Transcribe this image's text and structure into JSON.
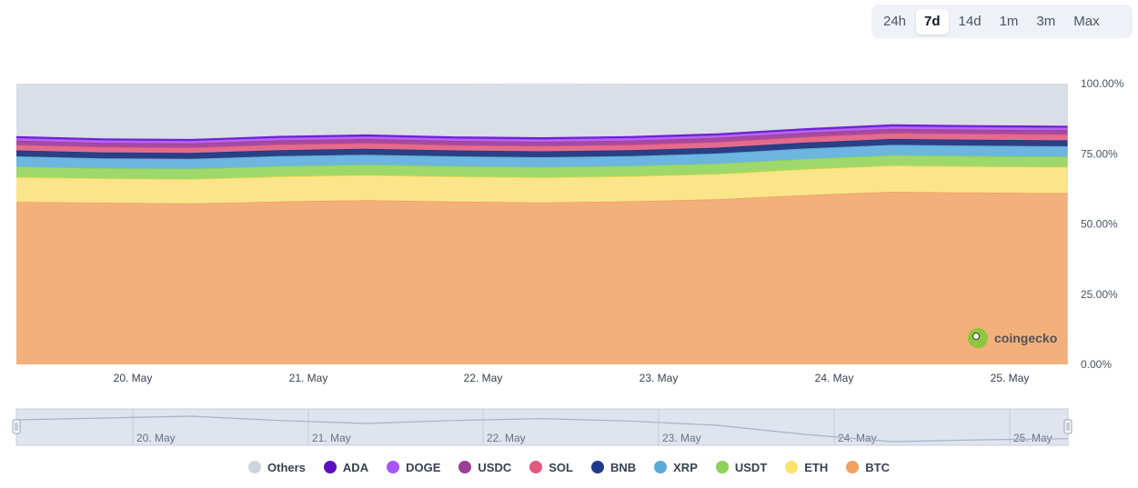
{
  "range_selector": {
    "options": [
      {
        "label": "24h",
        "active": false
      },
      {
        "label": "7d",
        "active": true
      },
      {
        "label": "14d",
        "active": false
      },
      {
        "label": "1m",
        "active": false
      },
      {
        "label": "3m",
        "active": false
      },
      {
        "label": "Max",
        "active": false
      }
    ]
  },
  "watermark": {
    "text": "coingecko"
  },
  "chart_data": {
    "type": "area",
    "stacked": true,
    "percent_stacked": true,
    "x": [
      "19. May 18:00",
      "20. May 06:00",
      "20. May 18:00",
      "21. May 06:00",
      "21. May 18:00",
      "22. May 06:00",
      "22. May 18:00",
      "23. May 06:00",
      "23. May 18:00",
      "24. May 06:00",
      "24. May 18:00",
      "25. May 06:00",
      "25. May 18:00"
    ],
    "x_tick_labels": [
      "20. May",
      "21. May",
      "22. May",
      "23. May",
      "24. May",
      "25. May"
    ],
    "navigator_tick_labels": [
      "20. May",
      "21. May",
      "22. May",
      "23. May",
      "24. May",
      "25. May"
    ],
    "y_tick_labels": [
      "0.00%",
      "25.00%",
      "50.00%",
      "75.00%",
      "100.00%"
    ],
    "ylim": [
      0,
      100
    ],
    "series": [
      {
        "name": "BTC",
        "color": "#f2b17a",
        "line": "#f0a061",
        "values": [
          57.9,
          57.6,
          57.3,
          58.0,
          58.5,
          58.0,
          57.7,
          58.1,
          58.8,
          60.3,
          61.5,
          61.2,
          61.0
        ]
      },
      {
        "name": "ETH",
        "color": "#fbe58a",
        "line": "#f6d84f",
        "values": [
          8.8,
          8.6,
          8.7,
          8.9,
          8.9,
          8.9,
          8.9,
          8.9,
          9.0,
          9.2,
          9.3,
          9.3,
          9.3
        ]
      },
      {
        "name": "USDT",
        "color": "#9ed86b",
        "line": "#8cd15a",
        "values": [
          3.8,
          3.7,
          3.7,
          3.7,
          3.7,
          3.7,
          3.7,
          3.7,
          3.7,
          3.7,
          3.7,
          3.7,
          3.7
        ]
      },
      {
        "name": "XRP",
        "color": "#6cb6e0",
        "line": "#5aaad8",
        "values": [
          3.6,
          3.5,
          3.5,
          3.6,
          3.6,
          3.5,
          3.5,
          3.5,
          3.6,
          3.7,
          3.7,
          3.7,
          3.7
        ]
      },
      {
        "name": "BNB",
        "color": "#2b3f84",
        "line": "#1e3a8a",
        "values": [
          2.1,
          2.1,
          2.1,
          2.1,
          2.1,
          2.1,
          2.1,
          2.1,
          2.1,
          2.1,
          2.1,
          2.1,
          2.1
        ]
      },
      {
        "name": "SOL",
        "color": "#e56b8c",
        "line": "#e0587e",
        "values": [
          2.0,
          1.9,
          1.9,
          2.0,
          2.0,
          1.9,
          1.9,
          1.9,
          2.0,
          2.0,
          2.1,
          2.1,
          2.1
        ]
      },
      {
        "name": "USDC",
        "color": "#a74a9f",
        "line": "#9b3f96",
        "values": [
          1.5,
          1.5,
          1.5,
          1.5,
          1.5,
          1.5,
          1.5,
          1.5,
          1.5,
          1.5,
          1.5,
          1.5,
          1.5
        ]
      },
      {
        "name": "DOGE",
        "color": "#ba66ee",
        "line": "#a855f7",
        "values": [
          0.9,
          0.9,
          0.9,
          0.9,
          0.9,
          0.9,
          0.9,
          0.9,
          0.9,
          0.9,
          0.9,
          0.9,
          0.9
        ]
      },
      {
        "name": "ADA",
        "color": "#6f1fcf",
        "line": "#6d28d9",
        "values": [
          0.7,
          0.7,
          0.7,
          0.7,
          0.7,
          0.7,
          0.7,
          0.7,
          0.7,
          0.7,
          0.7,
          0.7,
          0.7
        ]
      },
      {
        "name": "Others",
        "color": "#d9dee7",
        "line": "#d9dee7",
        "values": [
          18.7,
          19.5,
          19.7,
          18.6,
          18.1,
          18.8,
          19.2,
          18.7,
          17.7,
          15.9,
          14.5,
          14.8,
          15.0
        ]
      }
    ],
    "legend_order": [
      "Others",
      "ADA",
      "DOGE",
      "USDC",
      "SOL",
      "BNB",
      "XRP",
      "USDT",
      "ETH",
      "BTC"
    ],
    "legend_placement": "bottom",
    "grid": false
  }
}
